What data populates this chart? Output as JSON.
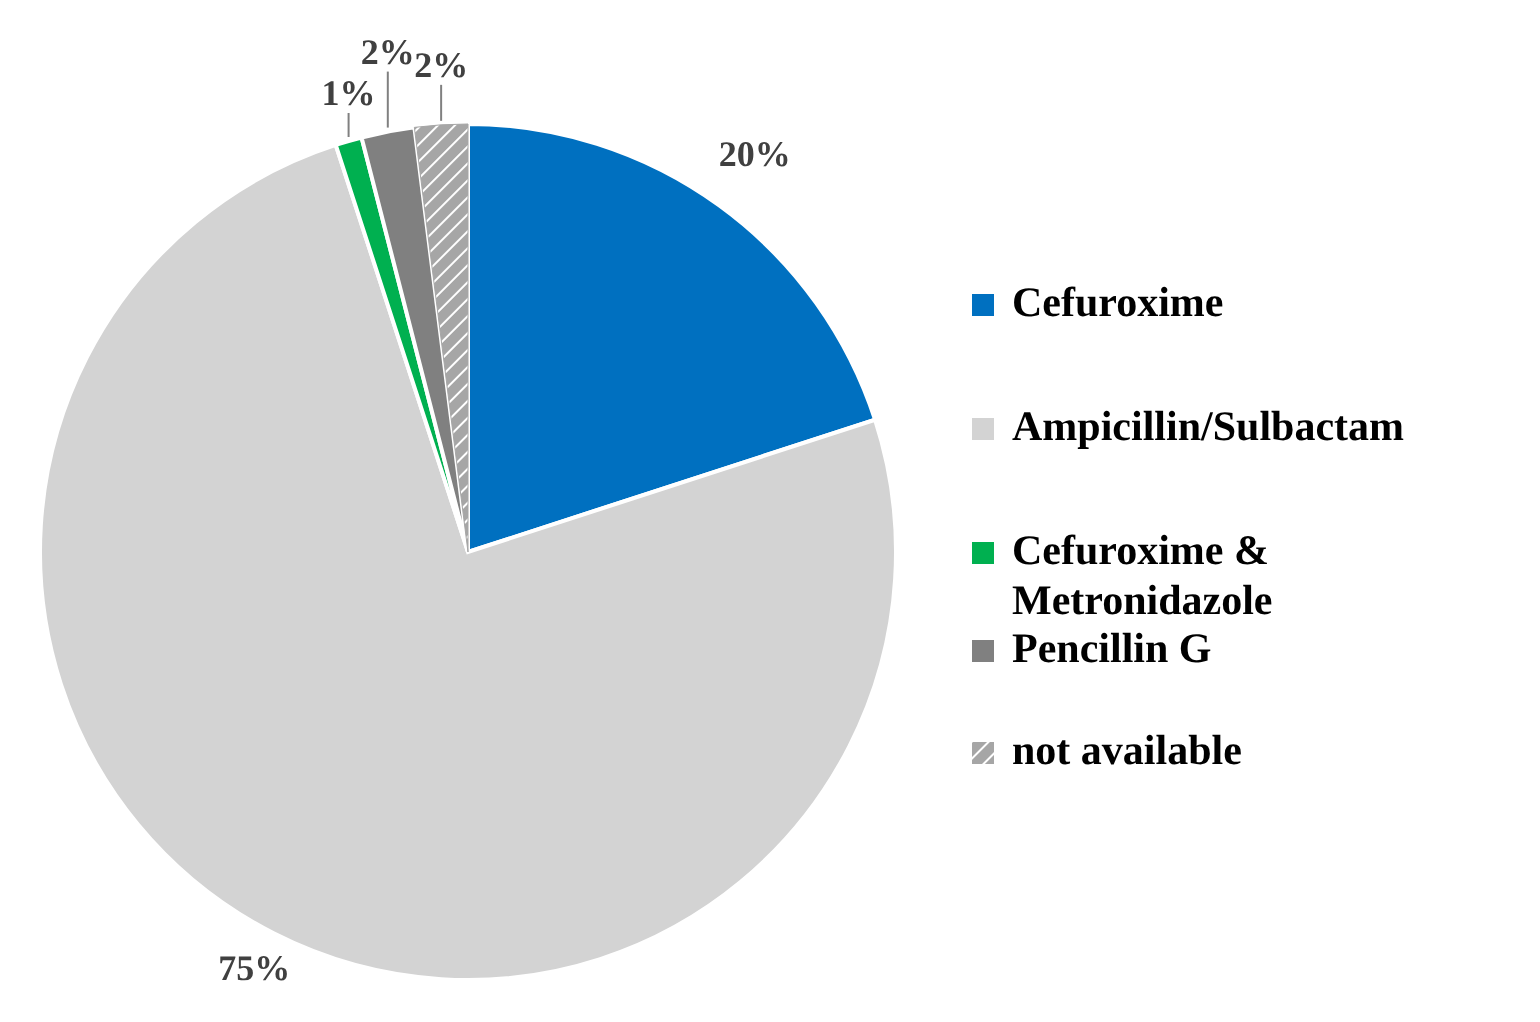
{
  "chart_data": {
    "type": "pie",
    "categories": [
      "Cefuroxime",
      "Ampicillin/Sulbactam",
      "Cefuroxime & Metronidazole",
      "Pencillin G",
      "not available"
    ],
    "values": [
      20,
      75,
      1,
      2,
      2
    ],
    "value_labels": [
      "20%",
      "75%",
      "1%",
      "2%",
      "2%"
    ],
    "colors": [
      "#0070c0",
      "#d3d3d3",
      "#00b050",
      "#808080",
      "#a6a6a6"
    ],
    "legend": "right"
  }
}
